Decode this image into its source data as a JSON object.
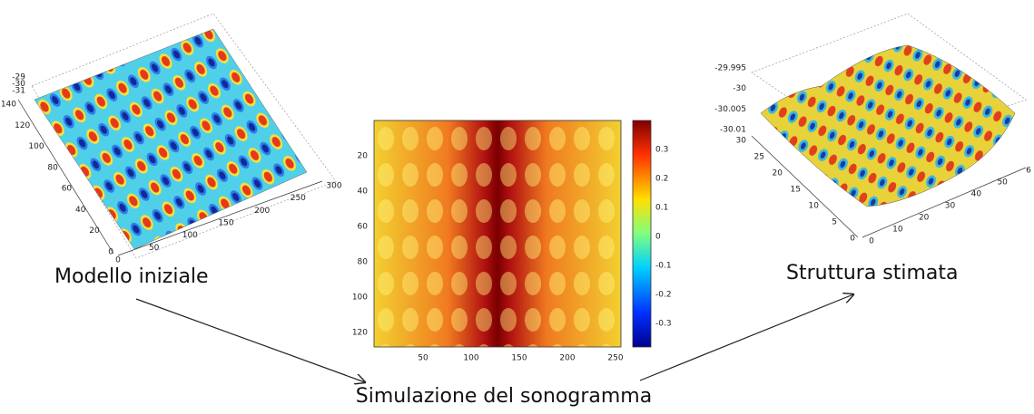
{
  "labels": {
    "initial_model": "Modello iniziale",
    "simulation": "Simulazione del sonogramma",
    "estimated": "Struttura stimata"
  },
  "left_plot": {
    "z_ticks": [
      "-29",
      "-30",
      "-31"
    ],
    "y_ticks": [
      "0",
      "20",
      "40",
      "60",
      "80",
      "100",
      "120",
      "140"
    ],
    "x_ticks": [
      "0",
      "50",
      "100",
      "150",
      "200",
      "250",
      "300"
    ]
  },
  "heatmap": {
    "y_ticks": [
      "20",
      "40",
      "60",
      "80",
      "100",
      "120"
    ],
    "x_ticks": [
      "50",
      "100",
      "150",
      "200",
      "250"
    ],
    "colorbar_ticks": [
      "0.3",
      "0.2",
      "0.1",
      "0",
      "-0.1",
      "-0.2",
      "-0.3"
    ]
  },
  "right_plot": {
    "z_ticks": [
      "-29.995",
      "-30",
      "-30.005",
      "-30.01"
    ],
    "y_ticks": [
      "0",
      "5",
      "10",
      "15",
      "20",
      "25",
      "30"
    ],
    "x_ticks": [
      "0",
      "10",
      "20",
      "30",
      "40",
      "50",
      "6"
    ]
  }
}
